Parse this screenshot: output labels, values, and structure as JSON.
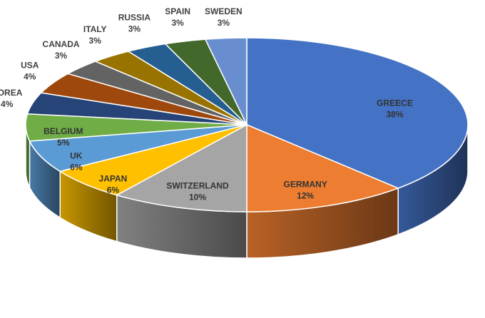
{
  "chart_data": {
    "type": "pie",
    "style": "3d",
    "title": "",
    "categories": [
      "GREECE",
      "GERMANY",
      "SWITZERLAND",
      "JAPAN",
      "UK",
      "BELGIUM",
      "KOREA",
      "USA",
      "CANADA",
      "ITALY",
      "RUSSIA",
      "SPAIN",
      "SWEDEN"
    ],
    "values": [
      38,
      12,
      10,
      6,
      6,
      5,
      4,
      4,
      3,
      3,
      3,
      3,
      3
    ],
    "value_labels": [
      "38%",
      "12%",
      "10%",
      "6%",
      "6%",
      "5%",
      "4%",
      "4%",
      "3%",
      "3%",
      "3%",
      "3%",
      "3%"
    ],
    "colors": [
      "#4472C4",
      "#ED7D31",
      "#A5A5A5",
      "#FFC000",
      "#5B9BD5",
      "#70AD47",
      "#264478",
      "#9E480E",
      "#636363",
      "#997300",
      "#255E91",
      "#43682B",
      "#698ED0"
    ],
    "legend": "none",
    "data_labels": "category-and-percent"
  }
}
